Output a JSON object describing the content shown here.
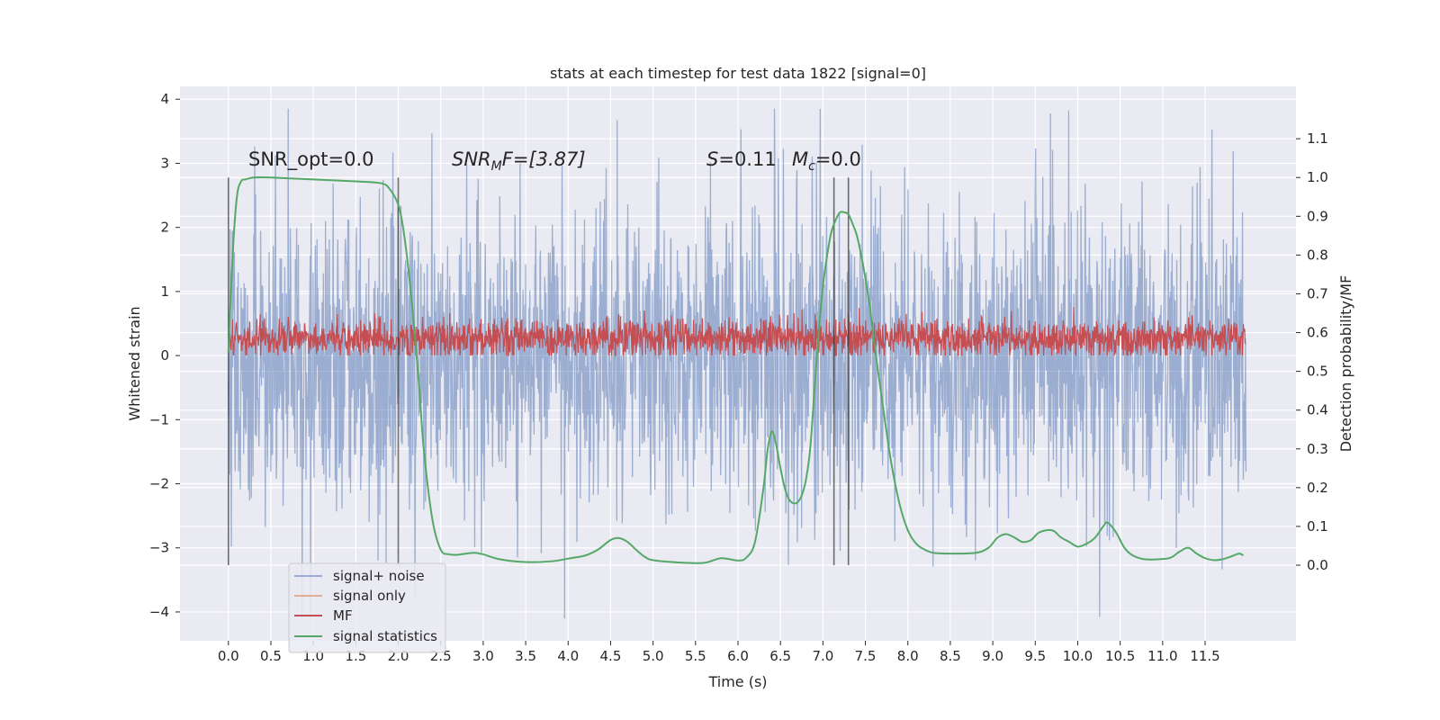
{
  "chart_data": {
    "type": "line",
    "title": "stats at each timestep for test data 1822 [signal=0]",
    "xlabel": "Time (s)",
    "ylabel_left": "Whitened strain",
    "ylabel_right": "Detection probability/MF",
    "xlim": [
      -0.57,
      12.57
    ],
    "ylim_left": [
      -4.45,
      4.2
    ],
    "ylim_right": [
      -0.195,
      1.235
    ],
    "x_ticks": [
      "0.0",
      "0.5",
      "1.0",
      "1.5",
      "2.0",
      "2.5",
      "3.0",
      "3.5",
      "4.0",
      "4.5",
      "5.0",
      "5.5",
      "6.0",
      "6.5",
      "7.0",
      "7.5",
      "8.0",
      "8.5",
      "9.0",
      "9.5",
      "10.0",
      "10.5",
      "11.0",
      "11.5"
    ],
    "y_ticks_left": [
      "−4",
      "−3",
      "−2",
      "−1",
      "0",
      "1",
      "2",
      "3",
      "4"
    ],
    "y_ticks_right": [
      "0.0",
      "0.1",
      "0.2",
      "0.3",
      "0.4",
      "0.5",
      "0.6",
      "0.7",
      "0.8",
      "0.9",
      "1.0",
      "1.1"
    ],
    "grid": true,
    "legend_position": "lower-left",
    "annotations": {
      "snr_opt": "SNR_opt=0.0",
      "snr_mf_var": "SNR",
      "snr_mf_sub": "M",
      "snr_mf_rest": "F=[3.87]",
      "s_var": "S",
      "s_rest": "=0.11",
      "mc_var": "M",
      "mc_sub": "c",
      "mc_rest": "=0.0"
    },
    "vertical_lines_x": [
      0.0,
      2.0,
      7.13,
      7.3
    ],
    "series": [
      {
        "name": "signal+ noise",
        "axis": "left",
        "color": "#4c72b0",
        "style": "noise",
        "x_range": [
          0.0,
          11.98
        ],
        "typical_range": [
          -1.8,
          1.8
        ],
        "extreme_range": [
          -4.1,
          3.85
        ],
        "values": []
      },
      {
        "name": "signal only",
        "axis": "left",
        "color": "#dd8452",
        "values": []
      },
      {
        "name": "MF",
        "axis": "left",
        "color": "#c44e52",
        "style": "noise",
        "x_range": [
          0.0,
          11.98
        ],
        "typical_range": [
          0.05,
          0.5
        ],
        "extreme_range": [
          0.0,
          0.95
        ],
        "values": []
      },
      {
        "name": "signal statistics",
        "axis": "right",
        "color": "#55a868",
        "x": [
          0.0,
          0.05,
          0.1,
          0.15,
          0.2,
          0.3,
          0.5,
          1.0,
          1.5,
          1.8,
          1.9,
          2.0,
          2.05,
          2.1,
          2.15,
          2.2,
          2.25,
          2.3,
          2.4,
          2.5,
          2.6,
          2.7,
          2.8,
          2.9,
          3.0,
          3.2,
          3.5,
          3.8,
          4.0,
          4.2,
          4.35,
          4.5,
          4.6,
          4.7,
          4.8,
          4.9,
          5.0,
          5.3,
          5.6,
          5.8,
          6.0,
          6.1,
          6.2,
          6.3,
          6.35,
          6.4,
          6.45,
          6.5,
          6.55,
          6.6,
          6.65,
          6.7,
          6.75,
          6.8,
          6.85,
          6.9,
          6.95,
          7.0,
          7.05,
          7.1,
          7.15,
          7.2,
          7.25,
          7.3,
          7.35,
          7.4,
          7.45,
          7.5,
          7.55,
          7.6,
          7.7,
          7.8,
          7.9,
          8.0,
          8.1,
          8.2,
          8.3,
          8.5,
          8.8,
          8.95,
          9.05,
          9.15,
          9.25,
          9.35,
          9.45,
          9.55,
          9.7,
          9.8,
          9.9,
          10.0,
          10.1,
          10.2,
          10.3,
          10.35,
          10.45,
          10.55,
          10.65,
          10.8,
          11.0,
          11.1,
          11.2,
          11.3,
          11.4,
          11.5,
          11.6,
          11.7,
          11.8,
          11.9,
          11.95
        ],
        "values": [
          0.55,
          0.8,
          0.95,
          0.99,
          0.995,
          1.0,
          1.0,
          0.995,
          0.99,
          0.985,
          0.97,
          0.93,
          0.88,
          0.8,
          0.7,
          0.58,
          0.45,
          0.3,
          0.12,
          0.04,
          0.028,
          0.027,
          0.03,
          0.032,
          0.028,
          0.015,
          0.008,
          0.01,
          0.017,
          0.025,
          0.04,
          0.065,
          0.07,
          0.06,
          0.04,
          0.022,
          0.013,
          0.007,
          0.006,
          0.018,
          0.012,
          0.02,
          0.06,
          0.2,
          0.3,
          0.345,
          0.31,
          0.25,
          0.2,
          0.17,
          0.16,
          0.162,
          0.18,
          0.22,
          0.3,
          0.45,
          0.6,
          0.72,
          0.8,
          0.86,
          0.89,
          0.91,
          0.91,
          0.905,
          0.88,
          0.85,
          0.8,
          0.74,
          0.67,
          0.58,
          0.42,
          0.27,
          0.16,
          0.09,
          0.055,
          0.04,
          0.032,
          0.03,
          0.032,
          0.045,
          0.07,
          0.08,
          0.072,
          0.06,
          0.065,
          0.085,
          0.09,
          0.072,
          0.06,
          0.048,
          0.055,
          0.07,
          0.1,
          0.11,
          0.085,
          0.045,
          0.025,
          0.015,
          0.016,
          0.02,
          0.035,
          0.045,
          0.03,
          0.018,
          0.013,
          0.015,
          0.022,
          0.03,
          0.025
        ]
      }
    ]
  }
}
